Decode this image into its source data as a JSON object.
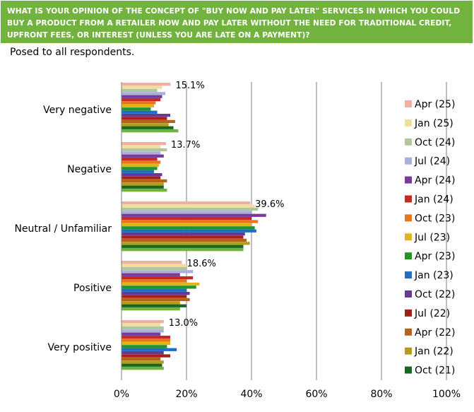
{
  "question": "WHAT IS YOUR OPINION OF THE CONCEPT OF \"BUY NOW AND PAY LATER\" SERVICES IN WHICH YOU COULD BUY A PRODUCT FROM A RETAILER NOW AND PAY LATER WITHOUT THE NEED FOR TRADITIONAL CREDIT, UPFRONT FEES, OR INTEREST (UNLESS YOU ARE LATE ON A PAYMENT)?",
  "subtitle": "Posed to all respondents.",
  "colors": {
    "banner": "#72b33f",
    "series": [
      "#f0b0a0",
      "#f2dd9e",
      "#b0c79b",
      "#a7b0dd",
      "#7a3a9c",
      "#c7281f",
      "#e8761a",
      "#e3b21d",
      "#239424",
      "#1d6ec4",
      "#6a3995",
      "#a32114",
      "#b9611c",
      "#b79c17",
      "#17691f"
    ]
  },
  "chart_data": {
    "type": "bar",
    "orientation": "horizontal",
    "categories": [
      "Very negative",
      "Negative",
      "Neutral / Unfamiliar",
      "Positive",
      "Very positive"
    ],
    "value_labels": [
      "15.1%",
      "13.7%",
      "39.6%",
      "18.6%",
      "13.0%"
    ],
    "xlim": [
      0,
      100
    ],
    "xticks": [
      "0%",
      "20%",
      "40%",
      "60%",
      "80%",
      "100%"
    ],
    "grid": "vertical",
    "legend_position": "right",
    "series": [
      {
        "name": "Apr (25)",
        "values": [
          15.1,
          13.7,
          39.6,
          18.6,
          13.0
        ]
      },
      {
        "name": "Jan (25)",
        "values": [
          12.5,
          12.0,
          41.0,
          20.0,
          12.0
        ]
      },
      {
        "name": "Oct (24)",
        "values": [
          11.0,
          14.0,
          42.0,
          20.0,
          13.0
        ]
      },
      {
        "name": "Jul (24)",
        "values": [
          13.5,
          12.0,
          40.0,
          22.0,
          13.0
        ]
      },
      {
        "name": "Apr (24)",
        "values": [
          12.5,
          13.0,
          44.5,
          18.0,
          12.0
        ]
      },
      {
        "name": "Jan (24)",
        "values": [
          12.0,
          11.0,
          40.0,
          22.0,
          15.0
        ]
      },
      {
        "name": "Oct (23)",
        "values": [
          10.5,
          12.0,
          42.0,
          20.0,
          15.0
        ]
      },
      {
        "name": "Jul (23)",
        "values": [
          10.0,
          11.5,
          40.0,
          24.0,
          15.0
        ]
      },
      {
        "name": "Apr (23)",
        "values": [
          9.0,
          11.0,
          41.0,
          23.0,
          14.0
        ]
      },
      {
        "name": "Jan (23)",
        "values": [
          11.0,
          10.0,
          41.5,
          20.0,
          17.0
        ]
      },
      {
        "name": "Oct (22)",
        "values": [
          15.0,
          12.5,
          38.0,
          21.0,
          13.0
        ]
      },
      {
        "name": "Jul (22)",
        "values": [
          14.0,
          12.0,
          37.5,
          20.0,
          15.0
        ]
      },
      {
        "name": "Apr (22)",
        "values": [
          16.5,
          14.0,
          38.5,
          21.0,
          12.0
        ]
      },
      {
        "name": "Jan (22)",
        "values": [
          14.5,
          13.0,
          39.5,
          18.0,
          13.0
        ]
      },
      {
        "name": "Oct (21)",
        "values": [
          16.0,
          13.0,
          37.5,
          20.0,
          12.5
        ]
      }
    ],
    "extra_bars": {
      "colors": [
        "#72b33f",
        "#72b33f",
        "#72b33f",
        "#72b33f",
        "#72b33f"
      ],
      "values": [
        17.5,
        14.0,
        37.5,
        18.0,
        13.0
      ]
    }
  }
}
